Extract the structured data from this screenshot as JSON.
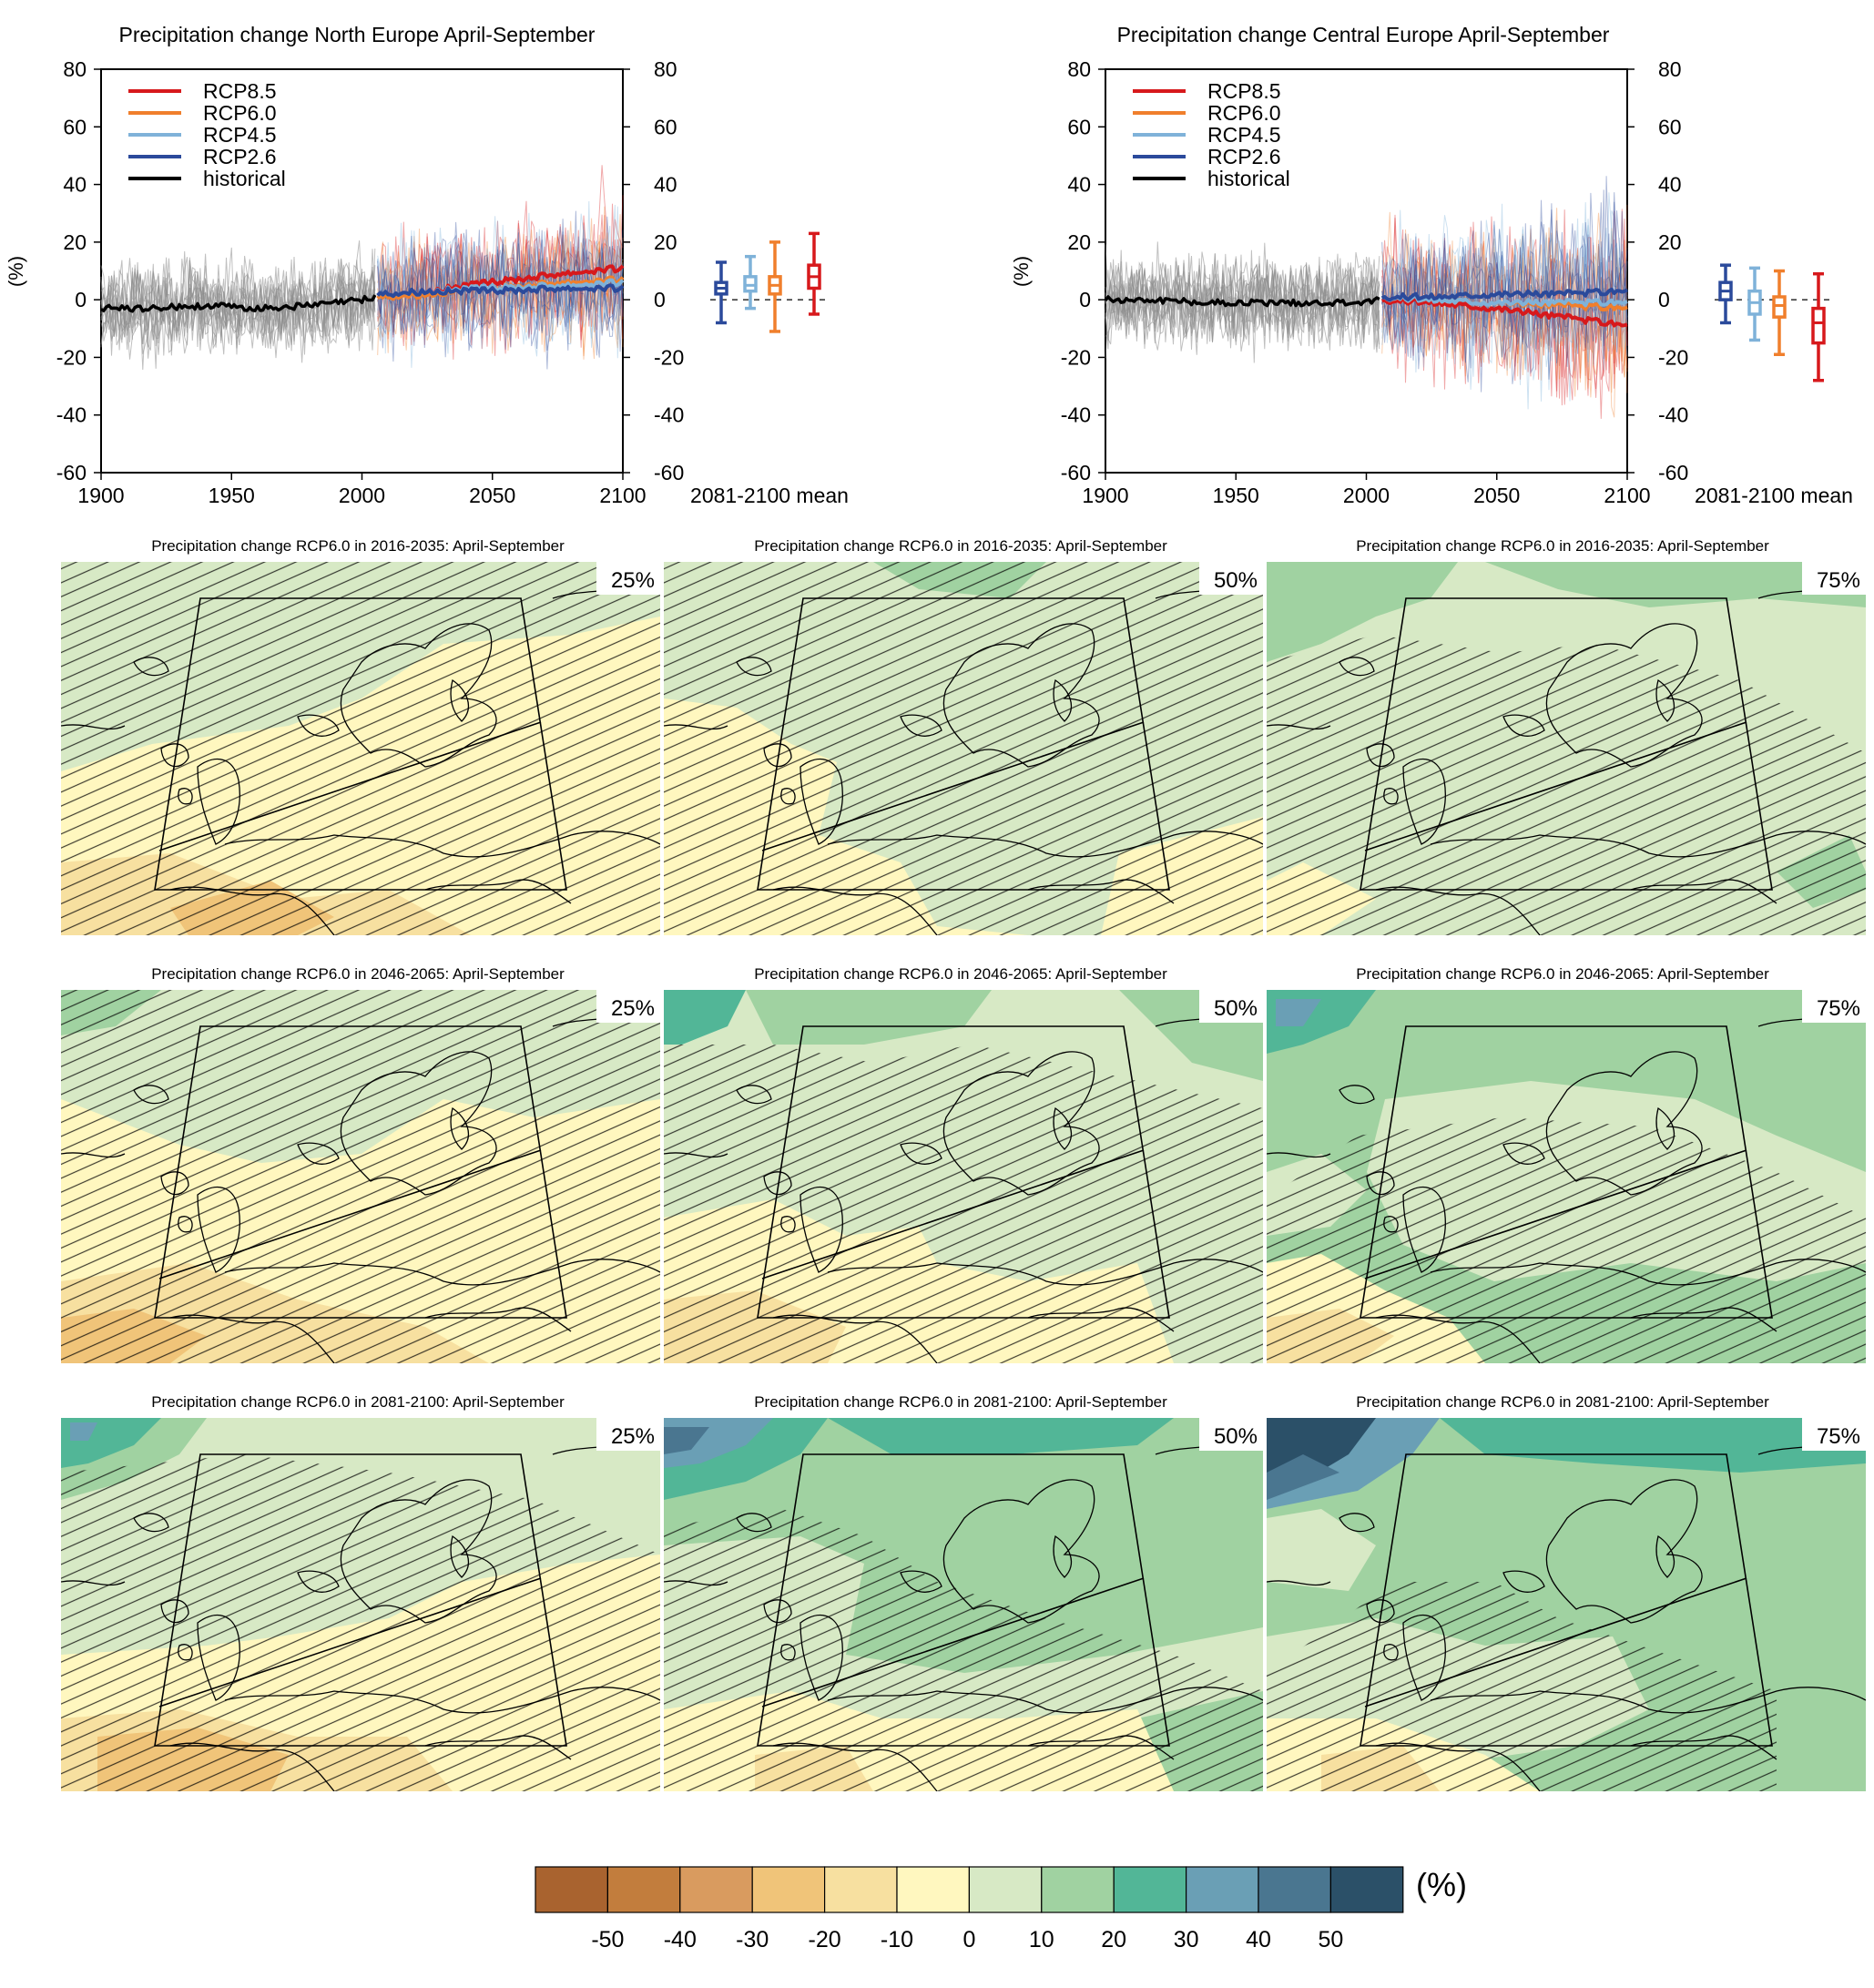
{
  "timeseries": [
    {
      "title": "Precipitation change North Europe April-September",
      "ylabel": "(%)",
      "ylim": [
        -60,
        80
      ],
      "yticks": [
        "80",
        "60",
        "40",
        "20",
        "0",
        "-20",
        "-40",
        "-60"
      ],
      "xticks": [
        "1900",
        "1950",
        "2000",
        "2050",
        "2100"
      ],
      "box_axis_label": "2081-2100 mean",
      "legend": [
        {
          "name": "RCP8.5",
          "color": "#d7191c"
        },
        {
          "name": "RCP6.0",
          "color": "#f07f2c"
        },
        {
          "name": "RCP4.5",
          "color": "#7fb2d9"
        },
        {
          "name": "RCP2.6",
          "color": "#2b4a9b"
        },
        {
          "name": "historical",
          "color": "#000000"
        }
      ]
    },
    {
      "title": "Precipitation change Central Europe April-September",
      "ylabel": "(%)",
      "ylim": [
        -60,
        80
      ],
      "yticks": [
        "80",
        "60",
        "40",
        "20",
        "0",
        "-20",
        "-40",
        "-60"
      ],
      "xticks": [
        "1900",
        "1950",
        "2000",
        "2050",
        "2100"
      ],
      "box_axis_label": "2081-2100 mean",
      "legend": [
        {
          "name": "RCP8.5",
          "color": "#d7191c"
        },
        {
          "name": "RCP6.0",
          "color": "#f07f2c"
        },
        {
          "name": "RCP4.5",
          "color": "#7fb2d9"
        },
        {
          "name": "RCP2.6",
          "color": "#2b4a9b"
        },
        {
          "name": "historical",
          "color": "#000000"
        }
      ]
    }
  ],
  "maps": [
    {
      "title": "Precipitation change RCP6.0 in 2016-2035: April-September",
      "percentiles": [
        "25%",
        "50%",
        "75%"
      ]
    },
    {
      "title": "Precipitation change RCP6.0 in 2046-2065: April-September",
      "percentiles": [
        "25%",
        "50%",
        "75%"
      ]
    },
    {
      "title": "Precipitation change RCP6.0 in 2081-2100: April-September",
      "percentiles": [
        "25%",
        "50%",
        "75%"
      ]
    }
  ],
  "colorbar": {
    "unit": "(%)",
    "labels": [
      "-50",
      "-40",
      "-30",
      "-20",
      "-10",
      "0",
      "10",
      "20",
      "30",
      "40",
      "50"
    ],
    "colors": [
      "#a9632f",
      "#c27d3d",
      "#d99b5f",
      "#f0c479",
      "#f7e0a0",
      "#fff7bf",
      "#d7e9c5",
      "#a0d2a1",
      "#52b697",
      "#6a9fb5",
      "#4a7690",
      "#2b5068"
    ]
  },
  "chart_data": [
    {
      "type": "line",
      "title": "Precipitation change North Europe April-September",
      "xlabel": "",
      "ylabel": "(%)",
      "xlim": [
        1900,
        2100
      ],
      "ylim": [
        -60,
        80
      ],
      "grid": false,
      "legend_position": "top-left",
      "series": [
        {
          "name": "historical",
          "x": [
            1900,
            1920,
            1940,
            1960,
            1980,
            2000,
            2005
          ],
          "y": [
            -3,
            -3,
            -2,
            -3,
            -2,
            0,
            1
          ]
        },
        {
          "name": "RCP2.6",
          "x": [
            2006,
            2025,
            2050,
            2075,
            2100
          ],
          "y": [
            2,
            3,
            3,
            4,
            4
          ]
        },
        {
          "name": "RCP4.5",
          "x": [
            2006,
            2025,
            2050,
            2075,
            2100
          ],
          "y": [
            2,
            3,
            4,
            5,
            6
          ]
        },
        {
          "name": "RCP6.0",
          "x": [
            2006,
            2025,
            2050,
            2075,
            2100
          ],
          "y": [
            1,
            2,
            4,
            6,
            7
          ]
        },
        {
          "name": "RCP8.5",
          "x": [
            2006,
            2025,
            2050,
            2075,
            2100
          ],
          "y": [
            2,
            3,
            6,
            9,
            11
          ]
        }
      ],
      "boxes_2081_2100": [
        {
          "name": "RCP2.6",
          "whisker_low": -8,
          "q1": 2,
          "median": 4,
          "q3": 6,
          "whisker_high": 13
        },
        {
          "name": "RCP4.5",
          "whisker_low": -3,
          "q1": 3,
          "median": 5,
          "q3": 8,
          "whisker_high": 15
        },
        {
          "name": "RCP6.0",
          "whisker_low": -11,
          "q1": 2,
          "median": 5,
          "q3": 8,
          "whisker_high": 20
        },
        {
          "name": "RCP8.5",
          "whisker_low": -5,
          "q1": 4,
          "median": 8,
          "q3": 12,
          "whisker_high": 23
        }
      ]
    },
    {
      "type": "line",
      "title": "Precipitation change Central Europe April-September",
      "xlabel": "",
      "ylabel": "(%)",
      "xlim": [
        1900,
        2100
      ],
      "ylim": [
        -60,
        80
      ],
      "grid": false,
      "legend_position": "top-left",
      "series": [
        {
          "name": "historical",
          "x": [
            1900,
            1920,
            1940,
            1960,
            1980,
            2000,
            2005
          ],
          "y": [
            0,
            0,
            -1,
            -1,
            -1,
            -1,
            0
          ]
        },
        {
          "name": "RCP2.6",
          "x": [
            2006,
            2025,
            2050,
            2075,
            2100
          ],
          "y": [
            1,
            1,
            2,
            2,
            3
          ]
        },
        {
          "name": "RCP4.5",
          "x": [
            2006,
            2025,
            2050,
            2075,
            2100
          ],
          "y": [
            1,
            0,
            -1,
            -1,
            -1
          ]
        },
        {
          "name": "RCP6.0",
          "x": [
            2006,
            2025,
            2050,
            2075,
            2100
          ],
          "y": [
            1,
            0,
            -1,
            -2,
            -3
          ]
        },
        {
          "name": "RCP8.5",
          "x": [
            2006,
            2025,
            2050,
            2075,
            2100
          ],
          "y": [
            0,
            -1,
            -3,
            -6,
            -9
          ]
        }
      ],
      "boxes_2081_2100": [
        {
          "name": "RCP2.6",
          "whisker_low": -8,
          "q1": 0,
          "median": 3,
          "q3": 6,
          "whisker_high": 12
        },
        {
          "name": "RCP4.5",
          "whisker_low": -14,
          "q1": -5,
          "median": -1,
          "q3": 3,
          "whisker_high": 11
        },
        {
          "name": "RCP6.0",
          "whisker_low": -19,
          "q1": -6,
          "median": -2,
          "q3": 1,
          "whisker_high": 10
        },
        {
          "name": "RCP8.5",
          "whisker_low": -28,
          "q1": -15,
          "median": -8,
          "q3": -3,
          "whisker_high": 9
        }
      ]
    }
  ]
}
